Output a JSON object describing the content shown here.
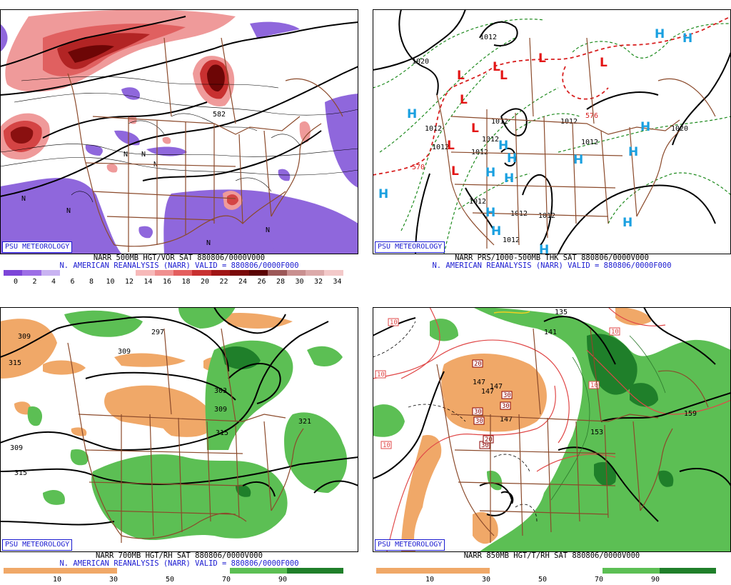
{
  "branding": "PSU METEOROLOGY",
  "panels": [
    {
      "title_line": "NARR 500MB HGT/VOR SAT 880806/0000V000",
      "valid_line": "N. AMERICAN REANALYSIS (NARR) VALID = 880806/0000F000",
      "colorbar": {
        "colors": [
          "#7d45d8",
          "#9d6ee6",
          "#c9b3f2",
          "#ffffff",
          "#ffffff",
          "#ffffff",
          "#ffffff",
          "#f7b9b9",
          "#f08f8f",
          "#e45e5e",
          "#c83030",
          "#a01515",
          "#7a0a0a",
          "#5a0303",
          "#9c5858",
          "#c98f8f",
          "#dcaaaa",
          "#f3c9c9"
        ],
        "ticks": [
          "0",
          "2",
          "4",
          "6",
          "8",
          "10",
          "12",
          "14",
          "16",
          "18",
          "20",
          "22",
          "24",
          "26",
          "28",
          "30",
          "32",
          "34"
        ]
      },
      "map_labels": [
        "N",
        "N",
        "N",
        "N",
        "N",
        "N",
        "N",
        "582"
      ]
    },
    {
      "title_line": "NARR PRS/1000-500MB THK SAT 880806/0000V000",
      "valid_line": "N. AMERICAN REANALYSIS (NARR) VALID = 880806/0000F000",
      "map_labels": [
        "1020",
        "1012",
        "1012",
        "1012",
        "1012",
        "1012",
        "1012",
        "1012",
        "1012",
        "1012",
        "1012",
        "1012",
        "1012",
        "1020",
        "570",
        "576"
      ],
      "highs": [
        "H",
        "H",
        "H",
        "H",
        "H",
        "H",
        "H",
        "H",
        "H",
        "H",
        "H",
        "H",
        "H",
        "H",
        "H"
      ],
      "lows": [
        "L",
        "L",
        "L",
        "L",
        "L",
        "L",
        "L",
        "L",
        "L"
      ]
    },
    {
      "title_line": "NARR 700MB HGT/RH SAT 880806/0000V000",
      "valid_line": "N. AMERICAN REANALYSIS (NARR) VALID = 880806/0000F000",
      "colorbar": {
        "colors": [
          "#f0a868",
          "#f0a868",
          "#ffffff",
          "#ffffff",
          "#5cbf54",
          "#1f7f2a"
        ],
        "ticks": [
          "10",
          "30",
          "50",
          "70",
          "90"
        ]
      },
      "map_labels": [
        "309",
        "315",
        "309",
        "315",
        "309",
        "315",
        "321",
        "309",
        "297",
        "303"
      ]
    },
    {
      "title_line": "NARR 850MB HGT/T/RH SAT 880806/0000V000",
      "valid_line": "",
      "colorbar": {
        "colors": [
          "#f0a868",
          "#f0a868",
          "#ffffff",
          "#ffffff",
          "#5cbf54",
          "#1f7f2a"
        ],
        "ticks": [
          "10",
          "30",
          "50",
          "70",
          "90"
        ]
      },
      "map_labels": [
        "147",
        "147",
        "147",
        "153",
        "159",
        "135",
        "141",
        "147"
      ],
      "temp_boxes": [
        "10",
        "10",
        "10",
        "10",
        "10",
        "20",
        "30",
        "30",
        "30",
        "30",
        "30",
        "20"
      ]
    }
  ]
}
